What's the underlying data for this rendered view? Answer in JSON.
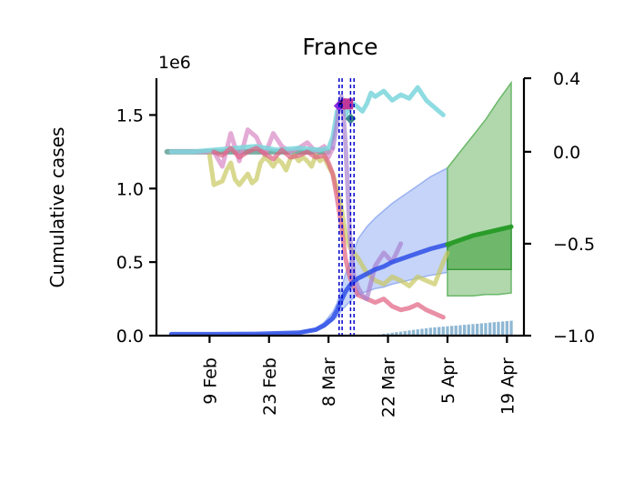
{
  "chart_data": {
    "type": "line",
    "title": "France",
    "ylabel": "Cumulative cases",
    "y_offset_label": "1e6",
    "x_tick_labels": [
      "9 Feb",
      "23 Feb",
      "8 Mar",
      "22 Mar",
      "5 Apr",
      "19 Apr"
    ],
    "x_tick_days": [
      9,
      23,
      37,
      51,
      65,
      79
    ],
    "x_range_days": [
      -3.5,
      83
    ],
    "ylim": [
      0,
      1.75
    ],
    "y_ticks": [
      0.0,
      0.5,
      1.0,
      1.5
    ],
    "y_tick_labels": [
      "0.0",
      "0.5",
      "1.0",
      "1.5"
    ],
    "y2lim": [
      -1.0,
      0.4
    ],
    "y2_ticks": [
      -1.0,
      -0.5,
      0.0,
      0.4
    ],
    "y2_tick_labels": [
      "−1.0",
      "−0.5",
      "0.0",
      "0.4"
    ],
    "intervention_days": [
      39.5,
      40.2,
      42.2,
      43.0
    ],
    "grid": false,
    "colors": {
      "cumulative": "#2e4fe8",
      "forecast": "#2a9c2a",
      "forecast_band": "#a9d3a3",
      "daily_bars": "#8fb8d4",
      "mobility_cyan": "#7ad6dc",
      "mobility_pink": "#d98fc8",
      "mobility_yellow": "#c8c860",
      "mobility_red": "#e06080",
      "mobility_purple": "#a882d0",
      "mobility_teal": "#6aa79a",
      "intervention_lines": "#0000cc"
    },
    "series": [
      {
        "role": "cumulative",
        "x": [
          0,
          10,
          20,
          30,
          34,
          36,
          38,
          39,
          40,
          41,
          42,
          43,
          44,
          46,
          48,
          50,
          52,
          55,
          58,
          61,
          65
        ],
        "y": [
          0.01,
          0.01,
          0.012,
          0.02,
          0.04,
          0.07,
          0.12,
          0.17,
          0.24,
          0.3,
          0.34,
          0.37,
          0.39,
          0.42,
          0.45,
          0.47,
          0.5,
          0.53,
          0.56,
          0.59,
          0.62
        ],
        "band_low": [
          0.01,
          0.01,
          0.011,
          0.018,
          0.035,
          0.06,
          0.1,
          0.13,
          0.17,
          0.2,
          0.23,
          0.26,
          0.28,
          0.3,
          0.32,
          0.33,
          0.35,
          0.37,
          0.39,
          0.41,
          0.43
        ],
        "band_high": [
          0.01,
          0.011,
          0.013,
          0.022,
          0.05,
          0.09,
          0.16,
          0.22,
          0.32,
          0.42,
          0.5,
          0.58,
          0.66,
          0.74,
          0.8,
          0.85,
          0.9,
          0.96,
          1.02,
          1.08,
          1.14
        ]
      },
      {
        "role": "forecast",
        "x": [
          65,
          68,
          71,
          74,
          77,
          80
        ],
        "y": [
          0.62,
          0.65,
          0.68,
          0.7,
          0.72,
          0.74
        ],
        "band_low": [
          0.27,
          0.27,
          0.27,
          0.28,
          0.28,
          0.29
        ],
        "band_high": [
          1.14,
          1.25,
          1.36,
          1.47,
          1.6,
          1.72
        ],
        "inner_low": [
          0.45,
          0.45,
          0.45,
          0.45,
          0.45,
          0.45
        ],
        "inner_high": [
          0.6,
          0.65,
          0.68,
          0.71,
          0.73,
          0.75
        ]
      },
      {
        "role": "mobility_cyan",
        "x": [
          0,
          5,
          10,
          15,
          20,
          25,
          30,
          35,
          37,
          38,
          39,
          40,
          41,
          42,
          43,
          44,
          45,
          46,
          47,
          48,
          50,
          52,
          54,
          56,
          58,
          60,
          62,
          64
        ],
        "y": [
          0.0,
          0.0,
          0.01,
          0.02,
          0.03,
          0.01,
          0.02,
          0.01,
          0.02,
          0.08,
          0.22,
          0.25,
          0.2,
          0.24,
          0.26,
          0.24,
          0.22,
          0.26,
          0.32,
          0.3,
          0.33,
          0.28,
          0.31,
          0.29,
          0.35,
          0.28,
          0.24,
          0.2
        ]
      },
      {
        "role": "mobility_pink",
        "x": [
          0,
          2,
          4,
          6,
          8,
          10,
          12,
          14,
          16,
          18,
          20,
          22,
          24,
          26,
          28,
          30,
          32,
          34,
          36,
          37,
          38
        ],
        "y": [
          0.0,
          0.0,
          0.0,
          0.0,
          0.0,
          0.0,
          -0.08,
          0.1,
          -0.05,
          0.12,
          0.08,
          -0.02,
          0.1,
          0.03,
          0.0,
          0.02,
          0.05,
          0.0,
          0.03,
          -0.03,
          0.02
        ]
      },
      {
        "role": "mobility_yellow",
        "x": [
          9,
          10,
          11,
          12,
          13,
          14,
          15,
          16,
          17,
          18,
          19,
          20,
          21,
          22,
          23,
          24,
          25,
          26,
          27,
          28,
          29,
          30,
          31,
          32,
          33,
          34,
          35,
          36,
          37,
          38,
          39,
          40,
          41,
          42,
          44,
          46,
          48,
          50,
          52,
          54,
          56,
          58,
          60,
          62,
          64,
          65
        ],
        "y": [
          -0.02,
          -0.18,
          -0.17,
          -0.16,
          -0.1,
          -0.06,
          -0.15,
          -0.18,
          -0.15,
          -0.12,
          -0.17,
          -0.15,
          -0.06,
          -0.03,
          -0.05,
          -0.08,
          -0.04,
          -0.06,
          -0.1,
          -0.04,
          -0.02,
          -0.05,
          -0.03,
          -0.05,
          -0.08,
          -0.02,
          -0.05,
          -0.03,
          -0.08,
          -0.12,
          -0.2,
          -0.3,
          -0.45,
          -0.52,
          -0.58,
          -0.66,
          -0.7,
          -0.72,
          -0.68,
          -0.7,
          -0.73,
          -0.68,
          -0.7,
          -0.72,
          -0.6,
          -0.55
        ]
      },
      {
        "role": "mobility_red",
        "x": [
          10,
          12,
          14,
          16,
          18,
          20,
          22,
          24,
          26,
          28,
          30,
          32,
          34,
          36,
          37,
          38,
          39,
          40,
          41,
          42,
          43,
          44,
          46,
          48,
          50,
          52,
          54,
          56,
          58,
          60,
          62,
          64
        ],
        "y": [
          0.0,
          -0.02,
          0.02,
          -0.03,
          0.0,
          0.02,
          -0.01,
          -0.04,
          0.01,
          -0.03,
          -0.02,
          0.0,
          -0.03,
          -0.02,
          -0.06,
          -0.12,
          -0.25,
          -0.4,
          -0.58,
          -0.68,
          -0.74,
          -0.78,
          -0.8,
          -0.82,
          -0.8,
          -0.84,
          -0.86,
          -0.85,
          -0.83,
          -0.86,
          -0.88,
          -0.9
        ]
      },
      {
        "role": "mobility_purple",
        "x": [
          38,
          39,
          39.5,
          40,
          40.5,
          41,
          41.5,
          42,
          43,
          44,
          45,
          46,
          48,
          50,
          52,
          54
        ],
        "y": [
          0.02,
          0.15,
          0.26,
          0.3,
          0.2,
          0.05,
          -0.2,
          -0.45,
          -0.68,
          -0.74,
          -0.78,
          -0.8,
          -0.62,
          -0.55,
          -0.6,
          -0.5
        ]
      },
      {
        "role": "mobility_teal",
        "x": [
          -1,
          37
        ],
        "y": [
          0.0,
          0.0
        ]
      },
      {
        "role": "daily_new",
        "x": [
          48,
          49,
          50,
          51,
          52,
          53,
          54,
          55,
          56,
          57,
          58,
          59,
          60,
          61,
          62,
          63,
          64,
          65,
          66,
          67,
          68,
          69,
          70,
          71,
          72,
          73,
          74,
          75,
          76,
          77,
          78,
          79,
          80
        ],
        "y": [
          -0.997,
          -0.994,
          -0.99,
          -0.987,
          -0.984,
          -0.981,
          -0.978,
          -0.975,
          -0.972,
          -0.969,
          -0.966,
          -0.963,
          -0.96,
          -0.957,
          -0.955,
          -0.953,
          -0.951,
          -0.949,
          -0.947,
          -0.945,
          -0.943,
          -0.941,
          -0.939,
          -0.937,
          -0.935,
          -0.933,
          -0.931,
          -0.929,
          -0.927,
          -0.925,
          -0.923,
          -0.921,
          -0.919
        ]
      }
    ],
    "markers": [
      {
        "x": 39.5,
        "y": 0.25,
        "color": "#8a2be2",
        "shape": "diamond"
      },
      {
        "x": 40.2,
        "y": 0.26,
        "color": "#6a1ad0",
        "shape": "diamond"
      },
      {
        "x": 40.8,
        "y": 0.26,
        "color": "#000000",
        "shape": "star"
      },
      {
        "x": 41.5,
        "y": 0.26,
        "color": "#c0399a",
        "shape": "square"
      },
      {
        "x": 42.2,
        "y": 0.18,
        "color": "#3a8a8a",
        "shape": "diamond"
      }
    ]
  }
}
